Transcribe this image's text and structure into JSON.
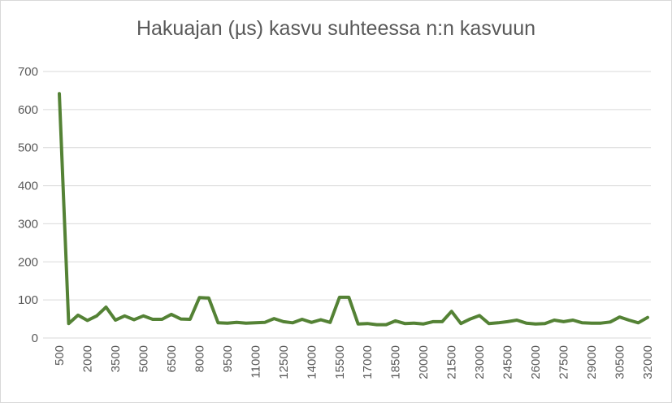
{
  "chart_data": {
    "type": "line",
    "title": "Hakuajan (µs) kasvu suhteessa n:n kasvuun",
    "xlabel": "",
    "ylabel": "",
    "ylim": [
      0,
      700
    ],
    "yticks": [
      0,
      100,
      200,
      300,
      400,
      500,
      600,
      700
    ],
    "grid": true,
    "legend": "none",
    "colors": {
      "line": "#548235",
      "grid": "#d9d9d9",
      "text": "#595959"
    },
    "x": [
      500,
      1000,
      1500,
      2000,
      2500,
      3000,
      3500,
      4000,
      4500,
      5000,
      5500,
      6000,
      6500,
      7000,
      7500,
      8000,
      8500,
      9000,
      9500,
      10000,
      10500,
      11000,
      11500,
      12000,
      12500,
      13000,
      13500,
      14000,
      14500,
      15000,
      15500,
      16000,
      16500,
      17000,
      17500,
      18000,
      18500,
      19000,
      19500,
      20000,
      20500,
      21000,
      21500,
      22000,
      22500,
      23000,
      23500,
      24000,
      24500,
      25000,
      25500,
      26000,
      26500,
      27000,
      27500,
      28000,
      28500,
      29000,
      29500,
      30000,
      30500,
      31000,
      31500,
      32000
    ],
    "x_tick_labels": [
      "500",
      "2000",
      "3500",
      "5000",
      "6500",
      "8000",
      "9500",
      "11000",
      "12500",
      "14000",
      "15500",
      "17000",
      "18500",
      "20000",
      "21500",
      "23000",
      "24500",
      "26000",
      "27500",
      "29000",
      "30500",
      "32000"
    ],
    "series": [
      {
        "values": [
          642,
          38,
          60,
          46,
          58,
          81,
          47,
          58,
          48,
          58,
          49,
          49,
          62,
          50,
          49,
          106,
          105,
          40,
          39,
          41,
          39,
          40,
          41,
          51,
          43,
          40,
          49,
          41,
          48,
          41,
          107,
          107,
          37,
          38,
          35,
          35,
          45,
          38,
          39,
          37,
          43,
          43,
          70,
          38,
          50,
          59,
          38,
          40,
          43,
          47,
          39,
          37,
          38,
          47,
          43,
          47,
          40,
          39,
          39,
          42,
          55,
          47,
          40,
          54
        ]
      }
    ]
  }
}
